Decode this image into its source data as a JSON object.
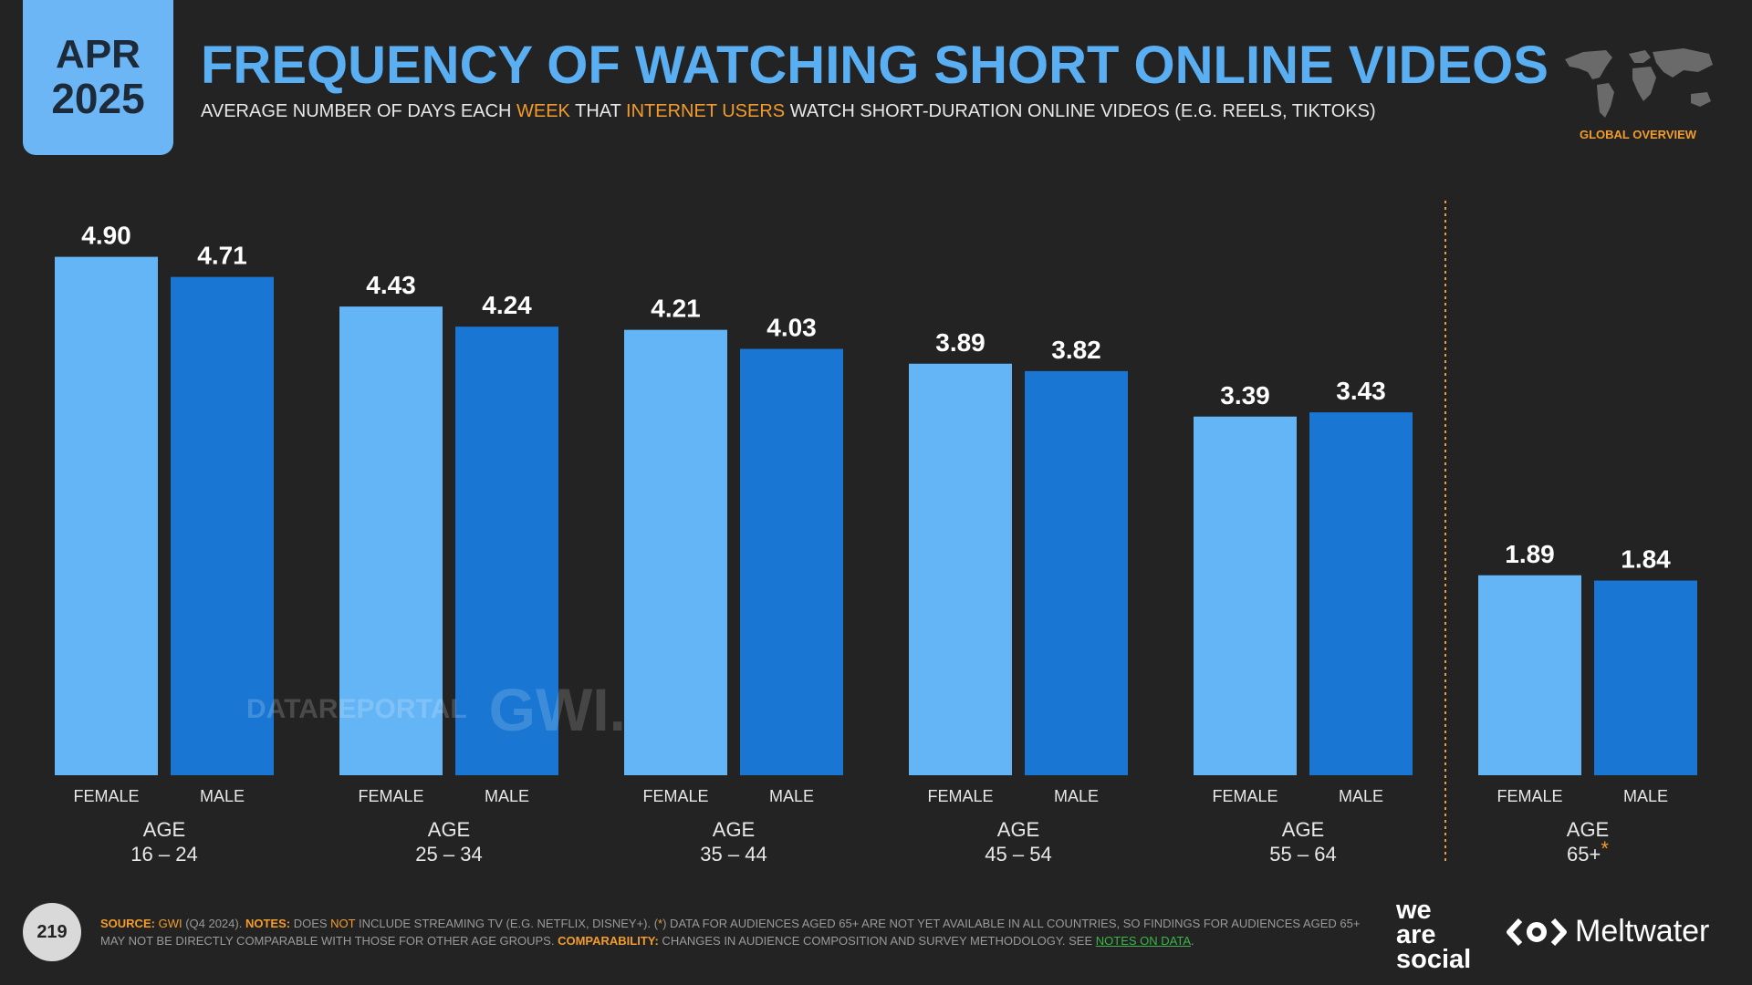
{
  "header": {
    "month": "APR",
    "year": "2025",
    "title": "FREQUENCY OF WATCHING SHORT ONLINE VIDEOS",
    "subtitle_parts": [
      "AVERAGE NUMBER OF DAYS EACH ",
      "WEEK",
      " THAT ",
      "INTERNET USERS",
      " WATCH SHORT-DURATION ONLINE VIDEOS (E.G. REELS, TIKTOKS)"
    ],
    "badge": "GLOBAL OVERVIEW"
  },
  "colors": {
    "female": "#64b5f6",
    "male": "#1976d2",
    "accent": "#f39c2b",
    "title": "#5aaef2",
    "background": "#232323"
  },
  "chart_data": {
    "type": "bar",
    "ylim": [
      0,
      5.5
    ],
    "series_labels": [
      "FEMALE",
      "MALE"
    ],
    "groups": [
      {
        "label1": "AGE",
        "label2": "16 – 24",
        "female": 4.9,
        "male": 4.71
      },
      {
        "label1": "AGE",
        "label2": "25 – 34",
        "female": 4.43,
        "male": 4.24
      },
      {
        "label1": "AGE",
        "label2": "35 – 44",
        "female": 4.21,
        "male": 4.03
      },
      {
        "label1": "AGE",
        "label2": "45 – 54",
        "female": 3.89,
        "male": 3.82
      },
      {
        "label1": "AGE",
        "label2": "55 – 64",
        "female": 3.39,
        "male": 3.43
      },
      {
        "label1": "AGE",
        "label2": "65+",
        "label2_mark": "*",
        "female": 1.89,
        "male": 1.84
      }
    ]
  },
  "watermark": {
    "datareportal": "DATAREPORTAL",
    "gwi": "GWI."
  },
  "footer": {
    "page_number": "219",
    "source_label": "SOURCE:",
    "source_value": "GWI",
    "source_period": " (Q4 2024). ",
    "notes_label": "NOTES:",
    "notes_text_1": " DOES ",
    "notes_not": "NOT",
    "notes_text_2": " INCLUDE STREAMING TV (E.G. NETFLIX, DISNEY+). (",
    "notes_star": "*",
    "notes_text_3": ") DATA FOR AUDIENCES AGED 65+ ARE NOT YET AVAILABLE IN ALL COUNTRIES, SO FINDINGS FOR AUDIENCES AGED 65+ MAY NOT BE DIRECTLY COMPARABLE WITH THOSE FOR OTHER AGE GROUPS. ",
    "comparability_label": "COMPARABILITY:",
    "comparability_text": " CHANGES IN AUDIENCE COMPOSITION AND SURVEY METHODOLOGY. SEE ",
    "notes_link": "NOTES ON DATA",
    "end": "."
  },
  "brands": {
    "was_line1": "we",
    "was_line2": "are",
    "was_line3": "social",
    "meltwater": "Meltwater"
  }
}
